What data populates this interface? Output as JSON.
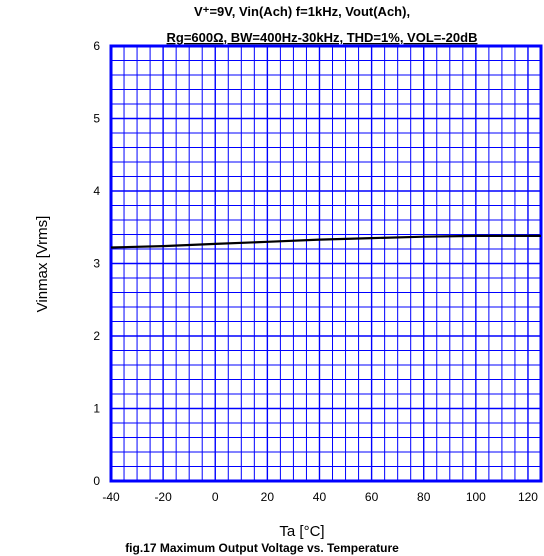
{
  "chart_data": {
    "type": "line",
    "title_line1": "V⁺=9V, Vin(Ach) f=1kHz, Vout(Ach),",
    "title_line2": "Rg=600Ω, BW=400Hz-30kHz, THD=1%, VOL=-20dB",
    "xlabel": "Ta [°C]",
    "ylabel": "Vinmax [Vrms]",
    "caption": "fig.17 Maximum Output Voltage vs. Temperature",
    "xlim": [
      -40,
      125
    ],
    "ylim": [
      0,
      6
    ],
    "x_ticks": [
      "-40",
      "-20",
      "0",
      "20",
      "40",
      "60",
      "80",
      "100",
      "120"
    ],
    "y_ticks": [
      "0",
      "1",
      "2",
      "3",
      "4",
      "5",
      "6"
    ],
    "grid": true,
    "grid_color": "#0000ff",
    "line_color": "#000000",
    "series": [
      {
        "x": [
          -40,
          -20,
          0,
          20,
          40,
          60,
          80,
          100,
          125
        ],
        "y": [
          3.22,
          3.24,
          3.27,
          3.3,
          3.33,
          3.35,
          3.37,
          3.38,
          3.38
        ]
      }
    ]
  }
}
